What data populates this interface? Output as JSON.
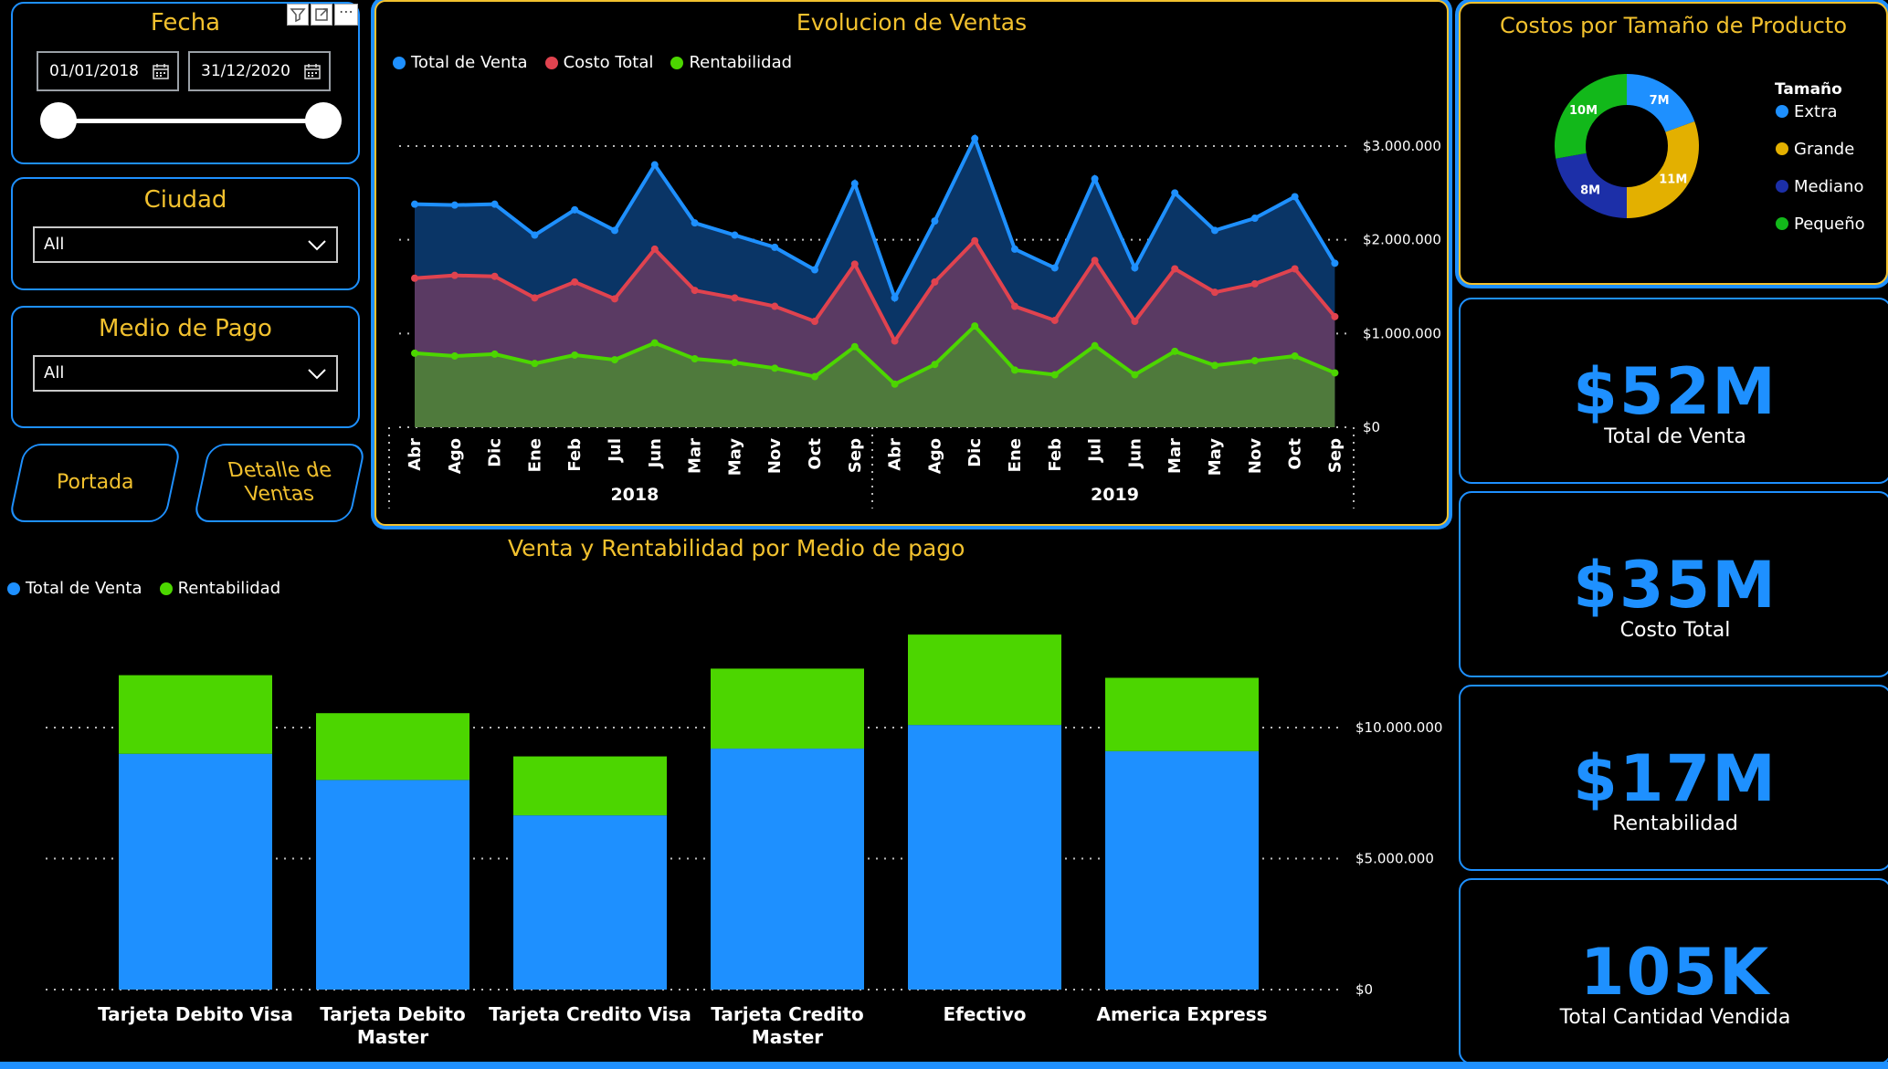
{
  "fecha_slicer": {
    "title": "Fecha",
    "start": "01/01/2018",
    "end": "31/12/2020",
    "range": [
      0.0,
      1.0
    ]
  },
  "ciudad_slicer": {
    "title": "Ciudad",
    "value": "All"
  },
  "medio_slicer": {
    "title": "Medio de Pago",
    "value": "All"
  },
  "nav": {
    "portada": "Portada",
    "detalle_line1": "Detalle de",
    "detalle_line2": "Ventas"
  },
  "colors": {
    "accent": "#1e90ff",
    "gold": "#f2c12e",
    "venta": "#1e90ff",
    "costo": "#e0434f",
    "rentabilidad": "#4cd600",
    "extra": "#1e90ff",
    "grande": "#e3b000",
    "mediano": "#1c2fa8",
    "pequeno": "#12b81a"
  },
  "evolucion": {
    "title": "Evolucion de Ventas",
    "legend": [
      "Total de Venta",
      "Costo Total",
      "Rentabilidad"
    ],
    "chart_data": {
      "type": "area",
      "title": "Evolucion de Ventas",
      "x": [
        "Abr",
        "Ago",
        "Dic",
        "Ene",
        "Feb",
        "Jul",
        "Jun",
        "Mar",
        "May",
        "Nov",
        "Oct",
        "Sep",
        "Abr",
        "Ago",
        "Dic",
        "Ene",
        "Feb",
        "Jul",
        "Jun",
        "Mar",
        "May",
        "Nov",
        "Oct",
        "Sep"
      ],
      "groups": [
        {
          "label": "2018",
          "count": 12
        },
        {
          "label": "2019",
          "count": 12
        }
      ],
      "series": [
        {
          "name": "Total de Venta",
          "values": [
            2380000,
            2370000,
            2380000,
            2050000,
            2320000,
            2100000,
            2800000,
            2180000,
            2050000,
            1920000,
            1680000,
            2600000,
            1380000,
            2200000,
            3080000,
            1900000,
            1700000,
            2650000,
            1700000,
            2500000,
            2100000,
            2230000,
            2460000,
            1750000
          ]
        },
        {
          "name": "Costo Total",
          "values": [
            1590000,
            1620000,
            1610000,
            1380000,
            1550000,
            1370000,
            1900000,
            1460000,
            1380000,
            1290000,
            1130000,
            1740000,
            920000,
            1550000,
            1990000,
            1290000,
            1140000,
            1780000,
            1130000,
            1690000,
            1440000,
            1530000,
            1690000,
            1180000
          ]
        },
        {
          "name": "Rentabilidad",
          "values": [
            790000,
            760000,
            780000,
            680000,
            770000,
            720000,
            900000,
            730000,
            690000,
            630000,
            540000,
            860000,
            460000,
            670000,
            1080000,
            610000,
            560000,
            870000,
            560000,
            810000,
            660000,
            710000,
            760000,
            580000
          ]
        }
      ],
      "ylim": [
        0,
        3000000
      ],
      "yticks": [
        "$0",
        "$1.000.000",
        "$2.000.000",
        "$3.000.000"
      ]
    }
  },
  "costos_tamano": {
    "title": "Costos por Tamaño de Producto",
    "legend_title": "Tamaño",
    "chart_data": {
      "type": "pie",
      "title": "Costos por Tamaño de Producto",
      "categories": [
        "Extra",
        "Grande",
        "Mediano",
        "Pequeño"
      ],
      "values": [
        7,
        11,
        8,
        10
      ],
      "labels": [
        "7M",
        "11M",
        "8M",
        "10M"
      ]
    }
  },
  "kpis": [
    {
      "value": "$52M",
      "label": "Total de Venta"
    },
    {
      "value": "$35M",
      "label": "Costo Total"
    },
    {
      "value": "$17M",
      "label": "Rentabilidad"
    },
    {
      "value": "105K",
      "label": "Total Cantidad Vendida"
    }
  ],
  "medio_pago": {
    "title": "Venta y Rentabilidad por Medio de pago",
    "legend": [
      "Total de Venta",
      "Rentabilidad"
    ],
    "chart_data": {
      "type": "bar",
      "title": "Venta y Rentabilidad por Medio de pago",
      "categories": [
        "Tarjeta Debito Visa",
        "Tarjeta Debito Master",
        "Tarjeta Credito Visa",
        "Tarjeta Credito Master",
        "Efectivo",
        "America Express"
      ],
      "series": [
        {
          "name": "Total de Venta",
          "values": [
            9000000,
            8000000,
            6650000,
            9200000,
            10100000,
            9100000
          ]
        },
        {
          "name": "Rentabilidad",
          "values": [
            3000000,
            2550000,
            2250000,
            3050000,
            3450000,
            2800000
          ]
        }
      ],
      "ylim": [
        0,
        10000000
      ],
      "yticks": [
        "$0",
        "$5.000.000",
        "$10.000.000"
      ]
    }
  }
}
